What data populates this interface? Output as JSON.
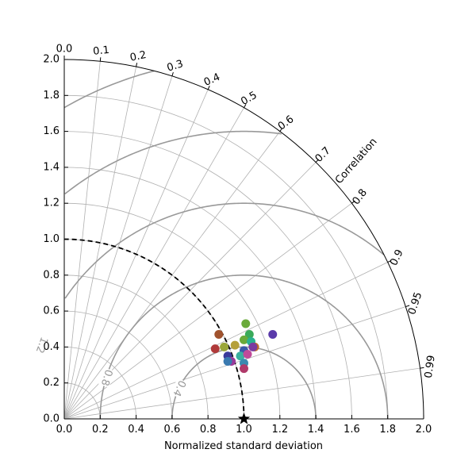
{
  "chart_data": {
    "type": "scatter",
    "subtype": "taylor-diagram",
    "xlabel": "Normalized standard deviation",
    "corr_label": "Correlation",
    "xlim": [
      0,
      2.0
    ],
    "ylim": [
      0,
      2.0
    ],
    "std_ticks": [
      "0.0",
      "0.2",
      "0.4",
      "0.6",
      "0.8",
      "1.0",
      "1.2",
      "1.4",
      "1.6",
      "1.8",
      "2.0"
    ],
    "corr_ticks": [
      {
        "value": 0.0,
        "label": "0.0"
      },
      {
        "value": 0.1,
        "label": "0.1"
      },
      {
        "value": 0.2,
        "label": "0.2"
      },
      {
        "value": 0.3,
        "label": "0.3"
      },
      {
        "value": 0.4,
        "label": "0.4"
      },
      {
        "value": 0.5,
        "label": "0.5"
      },
      {
        "value": 0.6,
        "label": "0.6"
      },
      {
        "value": 0.7,
        "label": "0.7"
      },
      {
        "value": 0.8,
        "label": "0.8"
      },
      {
        "value": 0.9,
        "label": "0.9"
      },
      {
        "value": 0.95,
        "label": "0.95"
      },
      {
        "value": 0.99,
        "label": "0.99"
      }
    ],
    "std_gridlines": [
      0.2,
      0.4,
      0.6,
      0.8,
      1.0,
      1.2,
      1.4,
      1.6,
      1.8
    ],
    "rms_contours": [
      {
        "value": 0.4,
        "label": "0.4"
      },
      {
        "value": 0.8,
        "label": "0.8"
      },
      {
        "value": 1.2,
        "label": "1.2"
      },
      {
        "value": 1.6,
        "label": "1.6"
      },
      {
        "value": 2.0,
        "label": "2.0"
      }
    ],
    "reference": {
      "std": 1.0,
      "marker": "star"
    },
    "points": [
      {
        "x": 0.86,
        "y": 0.47,
        "color": "#a0522d"
      },
      {
        "x": 0.84,
        "y": 0.39,
        "color": "#b03a3a"
      },
      {
        "x": 0.89,
        "y": 0.4,
        "color": "#9aa63a"
      },
      {
        "x": 0.95,
        "y": 0.41,
        "color": "#b5a03a"
      },
      {
        "x": 1.01,
        "y": 0.53,
        "color": "#6aaa3a"
      },
      {
        "x": 1.03,
        "y": 0.47,
        "color": "#3aaa5a"
      },
      {
        "x": 1.0,
        "y": 0.44,
        "color": "#6aaa3a"
      },
      {
        "x": 1.04,
        "y": 0.43,
        "color": "#2ab090"
      },
      {
        "x": 1.16,
        "y": 0.47,
        "color": "#5a3aaa"
      },
      {
        "x": 1.06,
        "y": 0.4,
        "color": "#c06a2a"
      },
      {
        "x": 1.05,
        "y": 0.4,
        "color": "#7a3aa0"
      },
      {
        "x": 1.0,
        "y": 0.38,
        "color": "#3a5aaa"
      },
      {
        "x": 0.91,
        "y": 0.35,
        "color": "#3a3a9a"
      },
      {
        "x": 0.98,
        "y": 0.35,
        "color": "#3ab0a0"
      },
      {
        "x": 1.02,
        "y": 0.36,
        "color": "#c04a9a"
      },
      {
        "x": 0.93,
        "y": 0.32,
        "color": "#9a3a9a"
      },
      {
        "x": 0.91,
        "y": 0.32,
        "color": "#3a7ab0"
      },
      {
        "x": 1.0,
        "y": 0.31,
        "color": "#3a8ab0"
      },
      {
        "x": 1.0,
        "y": 0.28,
        "color": "#b03a6a"
      }
    ],
    "colors": {
      "grid": "#b0b0b0",
      "contour": "#999999",
      "reference_arc": "#000000"
    }
  }
}
